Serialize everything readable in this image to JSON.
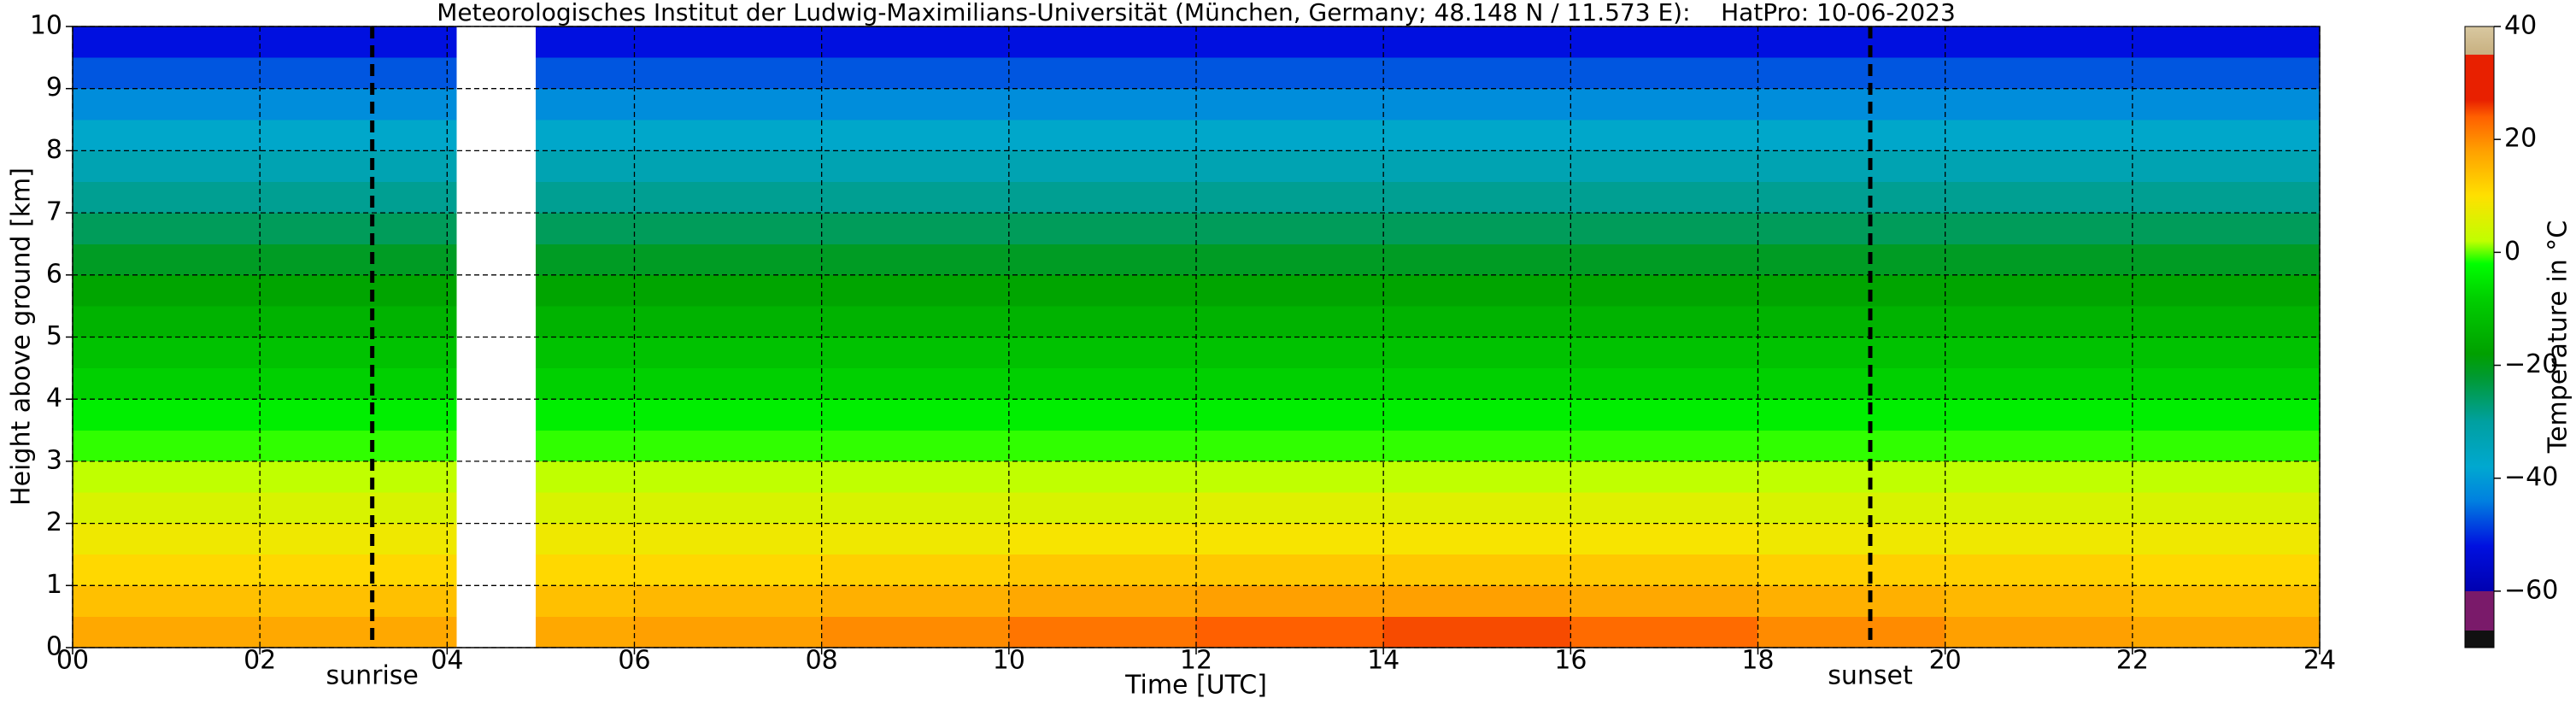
{
  "chart_data": {
    "type": "heatmap",
    "title": "Meteorologisches Institut der Ludwig-Maximilians-Universität (München, Germany; 48.148 N / 11.573 E):    HatPro: 10-06-2023",
    "xlabel": "Time [UTC]",
    "ylabel": "Height above ground [km]",
    "x_edges": [
      0,
      2,
      4.1,
      4.95,
      6,
      8,
      10,
      12,
      14,
      16,
      18,
      20,
      22,
      24
    ],
    "y_edges": [
      0,
      0.5,
      1,
      1.5,
      2,
      2.5,
      3,
      3.5,
      4,
      4.5,
      5,
      5.5,
      6,
      6.5,
      7,
      7.5,
      8,
      8.5,
      9,
      9.5,
      10
    ],
    "values": [
      [
        17,
        17,
        null,
        17,
        18,
        20,
        22,
        24,
        25,
        23,
        20,
        18,
        17
      ],
      [
        14,
        14,
        null,
        14,
        15,
        16,
        17,
        18,
        18,
        17,
        16,
        15,
        14
      ],
      [
        11,
        11,
        null,
        11,
        11,
        12,
        13,
        13,
        13,
        13,
        12,
        12,
        11
      ],
      [
        8,
        8,
        null,
        8,
        8,
        8,
        9,
        9,
        9,
        9,
        8,
        8,
        8
      ],
      [
        5,
        5,
        null,
        5,
        5,
        5,
        5,
        6,
        6,
        6,
        5,
        5,
        5
      ],
      [
        2,
        2,
        null,
        2,
        2,
        2,
        2,
        2,
        2,
        2,
        2,
        2,
        2
      ],
      [
        -1,
        -1,
        null,
        -1,
        -1,
        -1,
        -1,
        -1,
        -1,
        -1,
        -1,
        -1,
        -1
      ],
      [
        -4,
        -4,
        null,
        -4,
        -4,
        -4,
        -4,
        -4,
        -4,
        -4,
        -4,
        -4,
        -4
      ],
      [
        -8,
        -8,
        null,
        -8,
        -8,
        -8,
        -8,
        -8,
        -8,
        -8,
        -8,
        -8,
        -8
      ],
      [
        -11,
        -11,
        null,
        -11,
        -11,
        -11,
        -11,
        -11,
        -11,
        -11,
        -11,
        -11,
        -11
      ],
      [
        -14,
        -14,
        null,
        -14,
        -14,
        -14,
        -14,
        -14,
        -14,
        -14,
        -14,
        -14,
        -14
      ],
      [
        -17,
        -17,
        null,
        -17,
        -17,
        -17,
        -17,
        -17,
        -17,
        -17,
        -17,
        -17,
        -17
      ],
      [
        -21,
        -21,
        null,
        -21,
        -21,
        -21,
        -21,
        -21,
        -21,
        -21,
        -21,
        -21,
        -21
      ],
      [
        -25,
        -25,
        null,
        -25,
        -25,
        -25,
        -25,
        -25,
        -25,
        -25,
        -25,
        -25,
        -25
      ],
      [
        -29,
        -29,
        null,
        -29,
        -29,
        -29,
        -29,
        -29,
        -29,
        -29,
        -29,
        -29,
        -29
      ],
      [
        -33,
        -33,
        null,
        -33,
        -33,
        -33,
        -33,
        -33,
        -33,
        -33,
        -33,
        -33,
        -33
      ],
      [
        -37,
        -37,
        null,
        -37,
        -37,
        -37,
        -37,
        -37,
        -37,
        -37,
        -37,
        -37,
        -37
      ],
      [
        -42,
        -42,
        null,
        -42,
        -42,
        -42,
        -42,
        -42,
        -42,
        -42,
        -42,
        -42,
        -42
      ],
      [
        -47,
        -47,
        null,
        -47,
        -47,
        -47,
        -47,
        -47,
        -47,
        -47,
        -47,
        -47,
        -47
      ],
      [
        -52,
        -52,
        null,
        -52,
        -52,
        -52,
        -52,
        -52,
        -52,
        -52,
        -52,
        -52,
        -52
      ]
    ],
    "xlim": [
      0,
      24
    ],
    "xticks": [
      {
        "value": 0,
        "label": "00"
      },
      {
        "value": 2,
        "label": "02"
      },
      {
        "value": 4,
        "label": "04"
      },
      {
        "value": 6,
        "label": "06"
      },
      {
        "value": 8,
        "label": "08"
      },
      10,
      12,
      14,
      16,
      18,
      20,
      22,
      24
    ],
    "ylim": [
      0,
      10
    ],
    "yticks": [
      0,
      1,
      2,
      3,
      4,
      5,
      6,
      7,
      8,
      9,
      10
    ],
    "grid": true,
    "annotations": [
      {
        "text": "sunrise",
        "x": 3.2
      },
      {
        "text": "sunset",
        "x": 19.2
      }
    ],
    "colorbar": {
      "label": "Temperature in °C",
      "lim": [
        -70,
        40
      ],
      "ticks": [
        {
          "value": -60,
          "label": "−60"
        },
        {
          "value": -40,
          "label": "−40"
        },
        {
          "value": -20,
          "label": "−20"
        },
        0,
        20,
        40
      ]
    },
    "colormap": [
      {
        "value": -70,
        "color": "#111111"
      },
      {
        "value": -67,
        "color": "#111111"
      },
      {
        "value": -67,
        "color": "#7a1a6a"
      },
      {
        "value": -60,
        "color": "#7a1a6a"
      },
      {
        "value": -60,
        "color": "#0000b0"
      },
      {
        "value": -52,
        "color": "#0010e0"
      },
      {
        "value": -44,
        "color": "#0080e0"
      },
      {
        "value": -38,
        "color": "#00a8d0"
      },
      {
        "value": -30,
        "color": "#00a0a0"
      },
      {
        "value": -22,
        "color": "#009a30"
      },
      {
        "value": -18,
        "color": "#00a000"
      },
      {
        "value": -8,
        "color": "#00d000"
      },
      {
        "value": -2,
        "color": "#00ff00"
      },
      {
        "value": 2,
        "color": "#c0ff00"
      },
      {
        "value": 10,
        "color": "#ffe000"
      },
      {
        "value": 18,
        "color": "#ffa000"
      },
      {
        "value": 24,
        "color": "#ff6000"
      },
      {
        "value": 27,
        "color": "#e82000"
      },
      {
        "value": 35,
        "color": "#e82000"
      },
      {
        "value": 35,
        "color": "#c8b080"
      },
      {
        "value": 40,
        "color": "#d8c8a0"
      }
    ]
  }
}
